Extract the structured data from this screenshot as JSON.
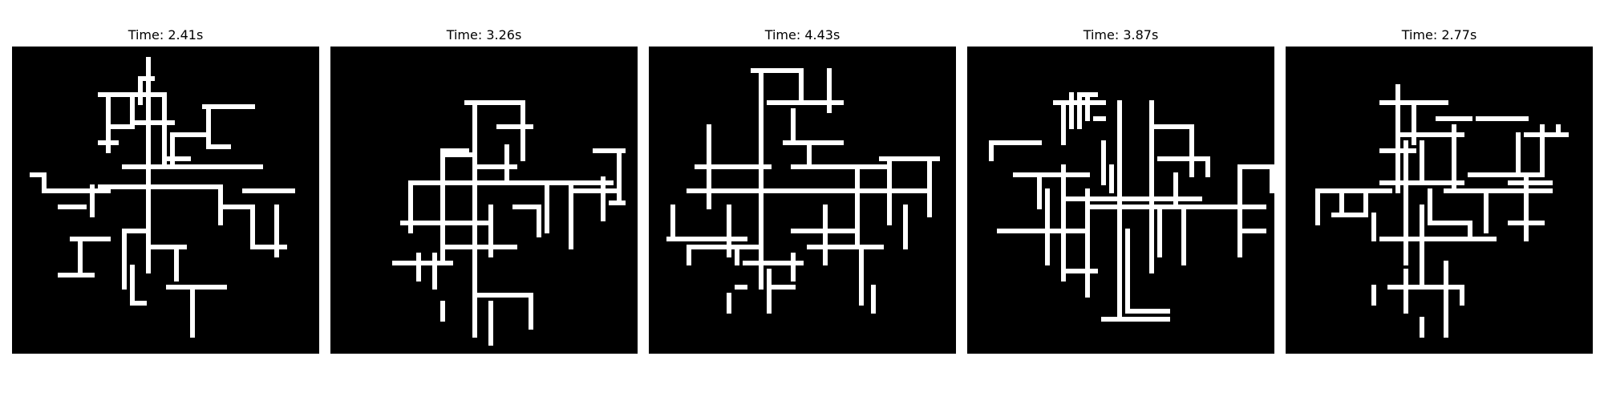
{
  "panels": [
    {
      "title": "Time: 2.41s"
    },
    {
      "title": "Time: 3.26s"
    },
    {
      "title": "Time: 4.43s"
    },
    {
      "title": "Time: 3.87s"
    },
    {
      "title": "Time: 2.77s"
    }
  ],
  "colors": {
    "background": "#000000",
    "cluster": "#ffffff"
  }
}
